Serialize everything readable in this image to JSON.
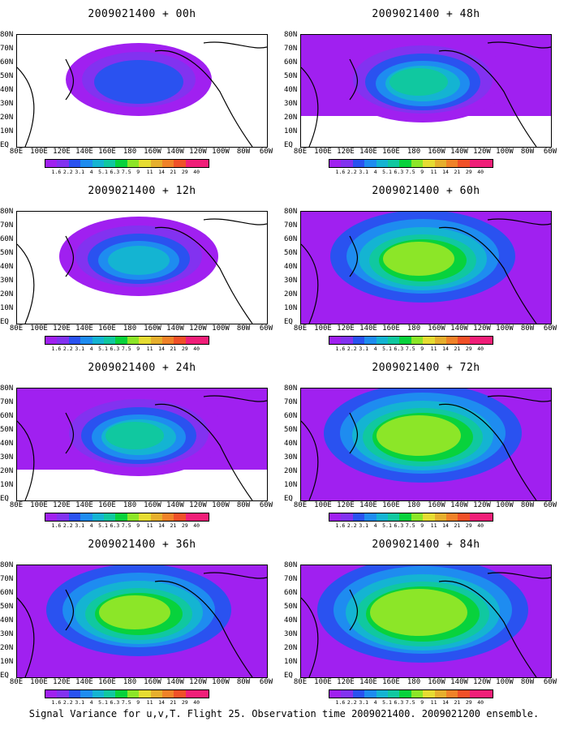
{
  "panels": [
    {
      "title": "2009021400 + 00h"
    },
    {
      "title": "2009021400 + 12h"
    },
    {
      "title": "2009021400 + 24h"
    },
    {
      "title": "2009021400 + 36h"
    },
    {
      "title": "2009021400 + 48h"
    },
    {
      "title": "2009021400 + 60h"
    },
    {
      "title": "2009021400 + 72h"
    },
    {
      "title": "2009021400 + 84h"
    }
  ],
  "lat_labels": [
    "80N",
    "70N",
    "60N",
    "50N",
    "40N",
    "30N",
    "20N",
    "10N",
    "EQ"
  ],
  "lon_labels": [
    "80E",
    "100E",
    "120E",
    "140E",
    "160E",
    "180",
    "160W",
    "140W",
    "120W",
    "100W",
    "80W",
    "60W"
  ],
  "colorbar": {
    "levels": [
      "1.6",
      "2.2",
      "3.1",
      "4",
      "5.1",
      "6.3",
      "7.5",
      "9",
      "11",
      "14",
      "21",
      "29",
      "40"
    ],
    "colors": [
      "#a020f0",
      "#8232f0",
      "#2a52f0",
      "#1e8cf0",
      "#14b4d2",
      "#10c8a0",
      "#08d23c",
      "#8ce628",
      "#e6dc32",
      "#e6af2d",
      "#f08228",
      "#f05028",
      "#f01e78"
    ]
  },
  "footer": "Signal Variance for u,v,T. Flight 25. Observation time 2009021400. 2009021200 ensemble."
}
